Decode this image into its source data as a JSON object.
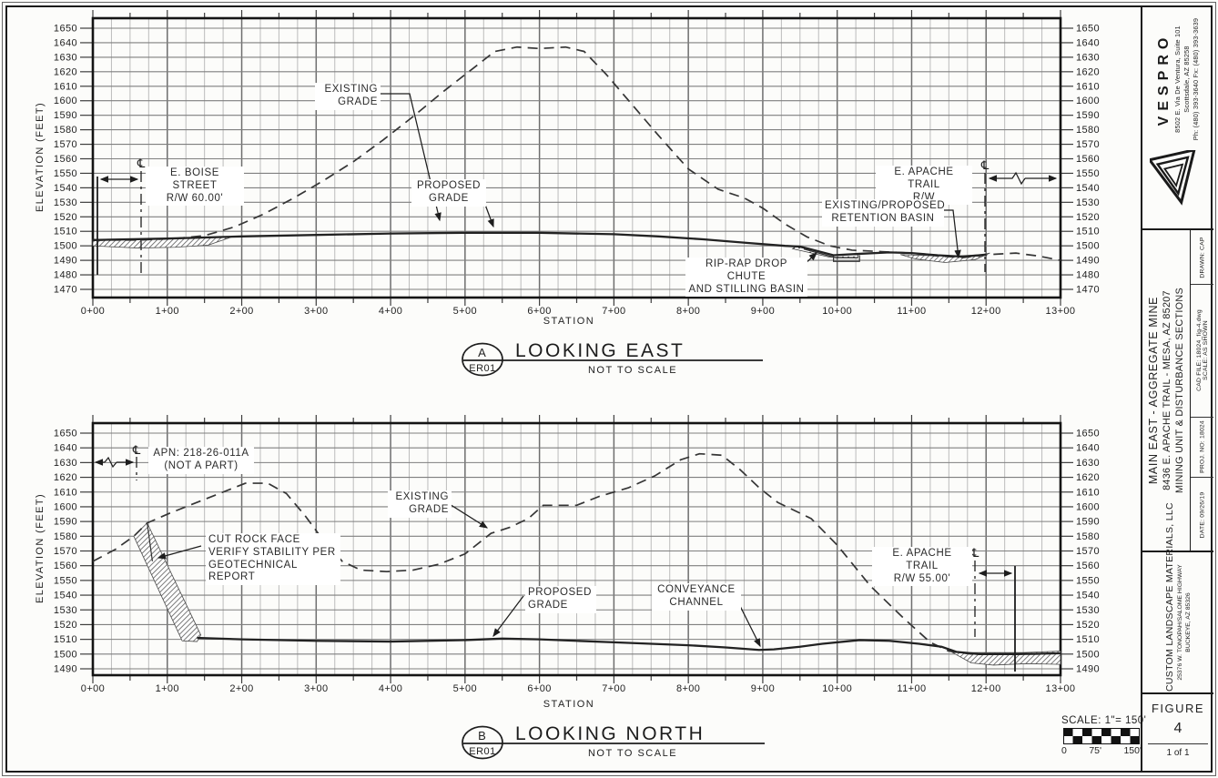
{
  "labels": {
    "pl_symbol": "℄",
    "chartA": {
      "marker": "A",
      "code": "ER01",
      "title": "LOOKING EAST",
      "subtitle": "NOT TO SCALE",
      "xlabel": "STATION",
      "ylabel": "ELEVATION (FEET)",
      "existing": "EXISTING\nGRADE",
      "proposed": "PROPOSED\nGRADE",
      "boise": "E. BOISE STREET\nR/W 60.00'",
      "apache": "E. APACHE TRAIL\nR/W",
      "retention": "EXISTING/PROPOSED\nRETENTION BASIN",
      "riprap": "RIP-RAP DROP CHUTE\nAND STILLING BASIN"
    },
    "chartB": {
      "marker": "B",
      "code": "ER01",
      "title": "LOOKING NORTH",
      "subtitle": "NOT TO SCALE",
      "xlabel": "STATION",
      "ylabel": "ELEVATION (FEET)",
      "existing": "EXISTING\nGRADE",
      "proposed": "PROPOSED\nGRADE",
      "apn": "APN: 218-26-011A\n(NOT A PART)",
      "cutrock": "CUT ROCK FACE\nVERIFY STABILITY PER\nGEOTECHNICAL REPORT",
      "conveyance": "CONVEYANCE\nCHANNEL",
      "apache": "E. APACHE TRAIL\nR/W 55.00'"
    }
  },
  "scale_bar": {
    "title": "SCALE: 1\"= 150'",
    "labels": [
      "0",
      "75'",
      "150'"
    ]
  },
  "title_block": {
    "vespro": {
      "name": "VESPRO",
      "address1": "8502 E. Via De Ventura, Suite 101",
      "address2": "Scottsdale, AZ 85258",
      "phone": "Ph: (480) 393-3640   Fx: (480) 393-3639"
    },
    "project": {
      "line1": "MAIN EAST - AGGREGATE MINE",
      "line2": "8436 E. APACHE TRAIL - MESA, AZ 85207",
      "line3": "MINING UNIT & DISTURBANCE SECTIONS"
    },
    "info": {
      "drawn": "DRAWN: CAP",
      "cad_file": "CAD FILE: 18024_fig-4.dwg",
      "scale": "SCALE: AS SHOWN",
      "proj_no": "PROJ. NO: 18024",
      "date": "DATE: 09/26/19"
    },
    "client": {
      "name": "CUSTOM LANDSCAPE MATERIALS, LLC",
      "address1": "25376 W. TONOPAH/SALOME HIGHWAY",
      "address2": "BUCKEYE, AZ 85326"
    },
    "figure": {
      "label": "FIGURE",
      "number": "4",
      "page": "1 of 1"
    }
  },
  "chart_data": [
    {
      "type": "line",
      "title": "LOOKING EAST",
      "xlabel": "STATION",
      "ylabel": "ELEVATION (FEET)",
      "xlim": [
        0,
        13
      ],
      "ylim": [
        1470,
        1650
      ],
      "y_tick_step": 10,
      "x_ticks": [
        "0+00",
        "1+00",
        "2+00",
        "3+00",
        "4+00",
        "5+00",
        "6+00",
        "7+00",
        "8+00",
        "9+00",
        "10+00",
        "11+00",
        "12+00",
        "13+00"
      ],
      "grid": true,
      "series": [
        {
          "name": "EXISTING GRADE",
          "style": "dashed",
          "points": [
            [
              0,
              1504
            ],
            [
              0.6,
              1504
            ],
            [
              1.1,
              1505
            ],
            [
              1.5,
              1507
            ],
            [
              1.9,
              1513
            ],
            [
              2.3,
              1522
            ],
            [
              2.7,
              1533
            ],
            [
              3.1,
              1545
            ],
            [
              3.5,
              1558
            ],
            [
              3.9,
              1573
            ],
            [
              4.3,
              1589
            ],
            [
              4.7,
              1606
            ],
            [
              5.1,
              1622
            ],
            [
              5.4,
              1634
            ],
            [
              5.7,
              1637
            ],
            [
              6.0,
              1636
            ],
            [
              6.35,
              1637
            ],
            [
              6.6,
              1634
            ],
            [
              6.9,
              1618
            ],
            [
              7.2,
              1600
            ],
            [
              7.6,
              1576
            ],
            [
              8.0,
              1553
            ],
            [
              8.4,
              1539
            ],
            [
              8.75,
              1533
            ],
            [
              9.0,
              1526
            ],
            [
              9.3,
              1515
            ],
            [
              9.6,
              1506
            ],
            [
              9.9,
              1500
            ],
            [
              10.2,
              1497
            ],
            [
              10.6,
              1496
            ],
            [
              11.0,
              1495
            ],
            [
              11.35,
              1493
            ],
            [
              11.7,
              1492
            ],
            [
              12.05,
              1494
            ],
            [
              12.4,
              1495
            ],
            [
              12.7,
              1493
            ],
            [
              13,
              1490
            ]
          ]
        },
        {
          "name": "PROPOSED GRADE",
          "style": "solid",
          "points": [
            [
              0,
              1504
            ],
            [
              1,
              1505
            ],
            [
              2,
              1506.5
            ],
            [
              3,
              1507.5
            ],
            [
              4,
              1508.5
            ],
            [
              5,
              1509
            ],
            [
              6,
              1509
            ],
            [
              7,
              1508
            ],
            [
              7.6,
              1506.5
            ],
            [
              8.2,
              1504.5
            ],
            [
              8.8,
              1502
            ],
            [
              9.3,
              1500
            ],
            [
              9.5,
              1499.5
            ],
            [
              9.95,
              1493.5
            ],
            [
              10.3,
              1494.5
            ],
            [
              10.7,
              1495.5
            ],
            [
              11.0,
              1495
            ],
            [
              11.35,
              1493.5
            ],
            [
              11.7,
              1492.5
            ],
            [
              12.0,
              1494
            ]
          ]
        }
      ],
      "areas": [
        {
          "name": "e-boise-street-pavement",
          "style": "hatch",
          "points": [
            [
              0,
              1504.5
            ],
            [
              0.6,
              1504.8
            ],
            [
              1.2,
              1505.2
            ],
            [
              1.85,
              1505.8
            ],
            [
              1.55,
              1500.5
            ],
            [
              1.1,
              1499
            ],
            [
              0.6,
              1498.5
            ],
            [
              0.2,
              1499.5
            ],
            [
              0,
              1500
            ]
          ]
        },
        {
          "name": "retention-basin",
          "style": "hatch",
          "points": [
            [
              10.85,
              1494
            ],
            [
              11.2,
              1493.3
            ],
            [
              11.6,
              1493
            ],
            [
              11.95,
              1494
            ],
            [
              12.05,
              1495
            ],
            [
              11.85,
              1490.5
            ],
            [
              11.45,
              1488.5
            ],
            [
              11.05,
              1491
            ]
          ]
        },
        {
          "name": "rip-rap",
          "style": "dots",
          "points": [
            [
              9.45,
              1499.5
            ],
            [
              9.95,
              1493.8
            ],
            [
              10.28,
              1493.8
            ],
            [
              10.28,
              1492
            ],
            [
              9.9,
              1492.2
            ],
            [
              9.4,
              1498
            ]
          ]
        }
      ],
      "details": [
        {
          "name": "drop-chute-lower-line",
          "points": [
            [
              9.55,
              1497.8
            ],
            [
              9.98,
              1491.8
            ],
            [
              10.28,
              1491.8
            ]
          ]
        },
        {
          "name": "stilling-basin-outline",
          "points": [
            [
              9.95,
              1493.5
            ],
            [
              9.95,
              1489.3
            ],
            [
              10.3,
              1489.3
            ],
            [
              10.3,
              1493.5
            ]
          ]
        }
      ]
    },
    {
      "type": "line",
      "title": "LOOKING NORTH",
      "xlabel": "STATION",
      "ylabel": "ELEVATION (FEET)",
      "xlim": [
        0,
        13
      ],
      "ylim": [
        1490,
        1650
      ],
      "y_tick_step": 10,
      "x_ticks": [
        "0+00",
        "1+00",
        "2+00",
        "3+00",
        "4+00",
        "5+00",
        "6+00",
        "7+00",
        "8+00",
        "9+00",
        "10+00",
        "11+00",
        "12+00",
        "13+00"
      ],
      "grid": true,
      "series": [
        {
          "name": "EXISTING GRADE",
          "style": "dashed",
          "points": [
            [
              0,
              1563
            ],
            [
              0.3,
              1571
            ],
            [
              0.55,
              1580
            ],
            [
              0.73,
              1589
            ],
            [
              1.05,
              1596
            ],
            [
              1.4,
              1603
            ],
            [
              1.75,
              1610
            ],
            [
              2.05,
              1616
            ],
            [
              2.35,
              1616
            ],
            [
              2.6,
              1609
            ],
            [
              2.85,
              1594
            ],
            [
              3.1,
              1577
            ],
            [
              3.35,
              1563
            ],
            [
              3.6,
              1557
            ],
            [
              3.95,
              1556
            ],
            [
              4.3,
              1557
            ],
            [
              4.65,
              1561
            ],
            [
              5.0,
              1568
            ],
            [
              5.35,
              1582
            ],
            [
              5.6,
              1586
            ],
            [
              5.85,
              1592
            ],
            [
              6.05,
              1601
            ],
            [
              6.5,
              1601
            ],
            [
              6.8,
              1607
            ],
            [
              7.2,
              1613
            ],
            [
              7.55,
              1621
            ],
            [
              7.9,
              1632
            ],
            [
              8.15,
              1636
            ],
            [
              8.45,
              1635
            ],
            [
              8.7,
              1625
            ],
            [
              8.95,
              1613
            ],
            [
              9.2,
              1603
            ],
            [
              9.65,
              1592
            ],
            [
              10.0,
              1574
            ],
            [
              10.45,
              1546
            ],
            [
              10.9,
              1524
            ],
            [
              11.25,
              1508
            ],
            [
              11.5,
              1502
            ],
            [
              11.8,
              1500
            ],
            [
              12.3,
              1500
            ],
            [
              12.7,
              1500
            ],
            [
              13,
              1501
            ]
          ]
        },
        {
          "name": "PROPOSED GRADE",
          "style": "solid",
          "points": [
            [
              1.4,
              1511
            ],
            [
              2,
              1510
            ],
            [
              3,
              1509
            ],
            [
              4,
              1508.5
            ],
            [
              5,
              1509.5
            ],
            [
              5.5,
              1510.5
            ],
            [
              6,
              1510
            ],
            [
              6.5,
              1509
            ],
            [
              7,
              1508
            ],
            [
              7.5,
              1507
            ],
            [
              8,
              1506
            ],
            [
              8.5,
              1504.5
            ],
            [
              8.95,
              1502.8
            ],
            [
              9.15,
              1503.2
            ],
            [
              9.5,
              1505
            ],
            [
              9.8,
              1507
            ],
            [
              10.3,
              1509.5
            ],
            [
              10.7,
              1509
            ],
            [
              11.1,
              1507
            ],
            [
              11.4,
              1505
            ],
            [
              11.6,
              1501.5
            ],
            [
              11.9,
              1500
            ],
            [
              12.4,
              1500
            ],
            [
              13,
              1500.5
            ]
          ]
        }
      ],
      "areas": [
        {
          "name": "cut-rock-face",
          "style": "hatch",
          "points": [
            [
              0.55,
              1580
            ],
            [
              0.73,
              1589
            ],
            [
              1.45,
              1513
            ],
            [
              1.4,
              1508.5
            ],
            [
              1.2,
              1509
            ]
          ]
        },
        {
          "name": "e-apache-trail-pavement",
          "style": "hatch",
          "points": [
            [
              11.55,
              1501
            ],
            [
              12.0,
              1501
            ],
            [
              12.5,
              1501
            ],
            [
              13,
              1502
            ],
            [
              13,
              1493
            ],
            [
              12.55,
              1493.5
            ],
            [
              12.1,
              1492.5
            ],
            [
              11.8,
              1494
            ]
          ]
        }
      ],
      "details": [
        {
          "name": "cut-face-edge-line",
          "points": [
            [
              0.73,
              1589
            ],
            [
              0.8,
              1563
            ]
          ]
        }
      ]
    }
  ]
}
